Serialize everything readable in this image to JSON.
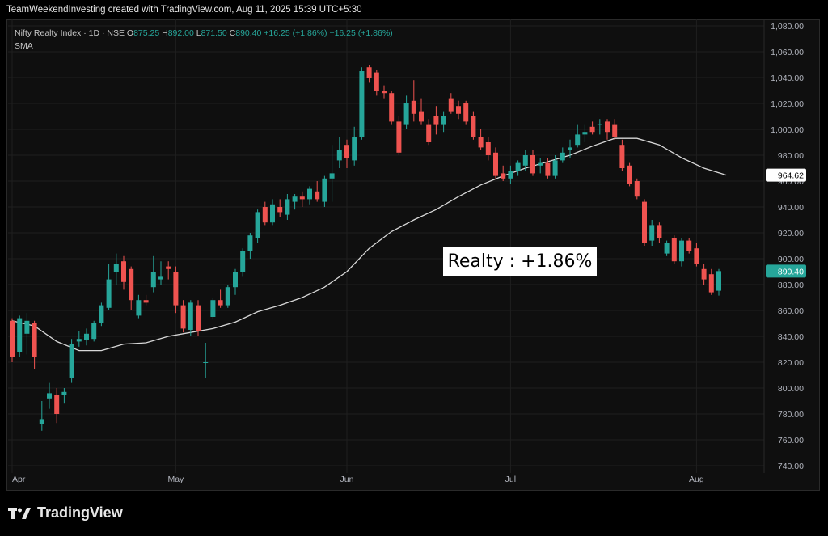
{
  "caption": "TeamWeekendInvesting created with TradingView.com, Aug 11, 2025 15:39 UTC+5:30",
  "legend": {
    "symbol": "Nifty Realty Index · 1D · NSE",
    "o_label": "O",
    "o_value": "875.25",
    "h_label": "H",
    "h_value": "892.00",
    "l_label": "L",
    "l_value": "871.50",
    "c_label": "C",
    "c_value": "890.40",
    "change": "+16.25 (+1.86%)",
    "change2": "+16.25 (+1.86%)",
    "indicator": "SMA"
  },
  "annotation": "Realty : +1.86%",
  "brand": "TradingView",
  "colors": {
    "up": "#26a69a",
    "down": "#ef5350",
    "sma": "#d8d8d8",
    "background": "#0f0f0f",
    "grid": "#1f1f1f"
  },
  "chart_data": {
    "type": "candlestick",
    "title": "Nifty Realty Index · 1D · NSE",
    "ylim": [
      740,
      1080
    ],
    "y_ticks": [
      "1,080.00",
      "1,060.00",
      "1,040.00",
      "1,020.00",
      "1,000.00",
      "980.00",
      "960.00",
      "940.00",
      "920.00",
      "900.00",
      "880.00",
      "860.00",
      "840.00",
      "820.00",
      "800.00",
      "780.00",
      "760.00",
      "740.00"
    ],
    "x_ticks": [
      {
        "label": "Apr",
        "index": 0
      },
      {
        "label": "May",
        "index": 22
      },
      {
        "label": "Jun",
        "index": 45
      },
      {
        "label": "Jul",
        "index": 67
      },
      {
        "label": "Aug",
        "index": 92
      }
    ],
    "price_badges": [
      {
        "label": "964.62",
        "value": 964.62,
        "kind": "sma"
      },
      {
        "label": "890.40",
        "value": 890.4,
        "kind": "last"
      }
    ],
    "candles": [
      {
        "o": 852,
        "h": 854,
        "l": 820,
        "c": 824
      },
      {
        "o": 828,
        "h": 856,
        "l": 824,
        "c": 854
      },
      {
        "o": 842,
        "h": 858,
        "l": 826,
        "c": 852
      },
      {
        "o": 850,
        "h": 852,
        "l": 815,
        "c": 824
      },
      {
        "o": 772,
        "h": 790,
        "l": 767,
        "c": 776
      },
      {
        "o": 792,
        "h": 804,
        "l": 784,
        "c": 796
      },
      {
        "o": 795,
        "h": 800,
        "l": 773,
        "c": 780
      },
      {
        "o": 795,
        "h": 800,
        "l": 788,
        "c": 797
      },
      {
        "o": 808,
        "h": 838,
        "l": 804,
        "c": 834
      },
      {
        "o": 836,
        "h": 844,
        "l": 832,
        "c": 838
      },
      {
        "o": 837,
        "h": 846,
        "l": 833,
        "c": 842
      },
      {
        "o": 838,
        "h": 852,
        "l": 836,
        "c": 850
      },
      {
        "o": 850,
        "h": 866,
        "l": 848,
        "c": 864
      },
      {
        "o": 862,
        "h": 896,
        "l": 860,
        "c": 884
      },
      {
        "o": 890,
        "h": 904,
        "l": 880,
        "c": 896
      },
      {
        "o": 898,
        "h": 902,
        "l": 876,
        "c": 882
      },
      {
        "o": 892,
        "h": 894,
        "l": 860,
        "c": 868
      },
      {
        "o": 856,
        "h": 872,
        "l": 854,
        "c": 868
      },
      {
        "o": 868,
        "h": 872,
        "l": 864,
        "c": 866
      },
      {
        "o": 878,
        "h": 902,
        "l": 874,
        "c": 890
      },
      {
        "o": 884,
        "h": 898,
        "l": 880,
        "c": 886
      },
      {
        "o": 894,
        "h": 898,
        "l": 884,
        "c": 892
      },
      {
        "o": 890,
        "h": 894,
        "l": 858,
        "c": 864
      },
      {
        "o": 864,
        "h": 868,
        "l": 843,
        "c": 846
      },
      {
        "o": 845,
        "h": 868,
        "l": 840,
        "c": 866
      },
      {
        "o": 864,
        "h": 868,
        "l": 840,
        "c": 844
      },
      {
        "o": 820,
        "h": 835,
        "l": 808,
        "c": 820
      },
      {
        "o": 855,
        "h": 870,
        "l": 853,
        "c": 868
      },
      {
        "o": 868,
        "h": 876,
        "l": 862,
        "c": 864
      },
      {
        "o": 864,
        "h": 880,
        "l": 862,
        "c": 878
      },
      {
        "o": 878,
        "h": 892,
        "l": 872,
        "c": 890
      },
      {
        "o": 890,
        "h": 908,
        "l": 886,
        "c": 906
      },
      {
        "o": 906,
        "h": 920,
        "l": 900,
        "c": 918
      },
      {
        "o": 916,
        "h": 938,
        "l": 912,
        "c": 936
      },
      {
        "o": 940,
        "h": 944,
        "l": 926,
        "c": 928
      },
      {
        "o": 928,
        "h": 946,
        "l": 926,
        "c": 942
      },
      {
        "o": 940,
        "h": 946,
        "l": 932,
        "c": 936
      },
      {
        "o": 934,
        "h": 950,
        "l": 930,
        "c": 946
      },
      {
        "o": 944,
        "h": 950,
        "l": 938,
        "c": 948
      },
      {
        "o": 948,
        "h": 952,
        "l": 940,
        "c": 946
      },
      {
        "o": 946,
        "h": 956,
        "l": 942,
        "c": 954
      },
      {
        "o": 952,
        "h": 960,
        "l": 944,
        "c": 946
      },
      {
        "o": 944,
        "h": 964,
        "l": 940,
        "c": 962
      },
      {
        "o": 962,
        "h": 988,
        "l": 944,
        "c": 966
      },
      {
        "o": 976,
        "h": 994,
        "l": 970,
        "c": 984
      },
      {
        "o": 988,
        "h": 992,
        "l": 970,
        "c": 978
      },
      {
        "o": 976,
        "h": 1002,
        "l": 972,
        "c": 994
      },
      {
        "o": 994,
        "h": 1048,
        "l": 992,
        "c": 1045
      },
      {
        "o": 1048,
        "h": 1050,
        "l": 1036,
        "c": 1040
      },
      {
        "o": 1044,
        "h": 1046,
        "l": 1026,
        "c": 1030
      },
      {
        "o": 1030,
        "h": 1034,
        "l": 1024,
        "c": 1028
      },
      {
        "o": 1028,
        "h": 1030,
        "l": 1004,
        "c": 1006
      },
      {
        "o": 1006,
        "h": 1010,
        "l": 980,
        "c": 982
      },
      {
        "o": 1004,
        "h": 1026,
        "l": 1000,
        "c": 1020
      },
      {
        "o": 1022,
        "h": 1038,
        "l": 1006,
        "c": 1012
      },
      {
        "o": 1014,
        "h": 1024,
        "l": 1004,
        "c": 1006
      },
      {
        "o": 1004,
        "h": 1008,
        "l": 988,
        "c": 990
      },
      {
        "o": 1010,
        "h": 1018,
        "l": 996,
        "c": 1004
      },
      {
        "o": 1004,
        "h": 1014,
        "l": 998,
        "c": 1010
      },
      {
        "o": 1024,
        "h": 1028,
        "l": 1012,
        "c": 1014
      },
      {
        "o": 1018,
        "h": 1022,
        "l": 1008,
        "c": 1012
      },
      {
        "o": 1020,
        "h": 1022,
        "l": 1004,
        "c": 1006
      },
      {
        "o": 1010,
        "h": 1014,
        "l": 992,
        "c": 994
      },
      {
        "o": 994,
        "h": 1000,
        "l": 984,
        "c": 986
      },
      {
        "o": 990,
        "h": 994,
        "l": 976,
        "c": 980
      },
      {
        "o": 982,
        "h": 986,
        "l": 962,
        "c": 964
      },
      {
        "o": 966,
        "h": 972,
        "l": 960,
        "c": 962
      },
      {
        "o": 962,
        "h": 972,
        "l": 958,
        "c": 968
      },
      {
        "o": 968,
        "h": 976,
        "l": 964,
        "c": 974
      },
      {
        "o": 972,
        "h": 984,
        "l": 968,
        "c": 980
      },
      {
        "o": 980,
        "h": 984,
        "l": 964,
        "c": 966
      },
      {
        "o": 972,
        "h": 978,
        "l": 966,
        "c": 974
      },
      {
        "o": 974,
        "h": 978,
        "l": 962,
        "c": 964
      },
      {
        "o": 964,
        "h": 980,
        "l": 962,
        "c": 976
      },
      {
        "o": 976,
        "h": 986,
        "l": 974,
        "c": 982
      },
      {
        "o": 984,
        "h": 992,
        "l": 978,
        "c": 986
      },
      {
        "o": 988,
        "h": 1004,
        "l": 986,
        "c": 996
      },
      {
        "o": 996,
        "h": 1004,
        "l": 990,
        "c": 998
      },
      {
        "o": 1002,
        "h": 1006,
        "l": 996,
        "c": 998
      },
      {
        "o": 1004,
        "h": 1008,
        "l": 996,
        "c": 1004
      },
      {
        "o": 1006,
        "h": 1008,
        "l": 992,
        "c": 998
      },
      {
        "o": 1004,
        "h": 1008,
        "l": 992,
        "c": 994
      },
      {
        "o": 988,
        "h": 992,
        "l": 968,
        "c": 970
      },
      {
        "o": 972,
        "h": 974,
        "l": 956,
        "c": 958
      },
      {
        "o": 960,
        "h": 962,
        "l": 946,
        "c": 948
      },
      {
        "o": 944,
        "h": 946,
        "l": 910,
        "c": 912
      },
      {
        "o": 914,
        "h": 930,
        "l": 910,
        "c": 926
      },
      {
        "o": 926,
        "h": 928,
        "l": 912,
        "c": 916
      },
      {
        "o": 904,
        "h": 914,
        "l": 902,
        "c": 912
      },
      {
        "o": 916,
        "h": 918,
        "l": 896,
        "c": 898
      },
      {
        "o": 898,
        "h": 916,
        "l": 894,
        "c": 914
      },
      {
        "o": 914,
        "h": 916,
        "l": 904,
        "c": 906
      },
      {
        "o": 908,
        "h": 912,
        "l": 894,
        "c": 896
      },
      {
        "o": 892,
        "h": 896,
        "l": 880,
        "c": 884
      },
      {
        "o": 888,
        "h": 892,
        "l": 872,
        "c": 874
      },
      {
        "o": 875.25,
        "h": 892,
        "l": 871.5,
        "c": 890.4
      }
    ],
    "sma": [
      {
        "i": 0,
        "v": 852
      },
      {
        "i": 3,
        "v": 848
      },
      {
        "i": 6,
        "v": 836
      },
      {
        "i": 9,
        "v": 829
      },
      {
        "i": 12,
        "v": 829
      },
      {
        "i": 15,
        "v": 834
      },
      {
        "i": 18,
        "v": 835
      },
      {
        "i": 21,
        "v": 840
      },
      {
        "i": 24,
        "v": 843
      },
      {
        "i": 27,
        "v": 846
      },
      {
        "i": 30,
        "v": 851
      },
      {
        "i": 33,
        "v": 859
      },
      {
        "i": 36,
        "v": 864
      },
      {
        "i": 39,
        "v": 870
      },
      {
        "i": 42,
        "v": 878
      },
      {
        "i": 45,
        "v": 890
      },
      {
        "i": 48,
        "v": 908
      },
      {
        "i": 51,
        "v": 921
      },
      {
        "i": 54,
        "v": 930
      },
      {
        "i": 57,
        "v": 938
      },
      {
        "i": 60,
        "v": 948
      },
      {
        "i": 63,
        "v": 957
      },
      {
        "i": 66,
        "v": 964
      },
      {
        "i": 69,
        "v": 970
      },
      {
        "i": 72,
        "v": 975
      },
      {
        "i": 75,
        "v": 980
      },
      {
        "i": 78,
        "v": 987
      },
      {
        "i": 81,
        "v": 993
      },
      {
        "i": 84,
        "v": 993
      },
      {
        "i": 87,
        "v": 988
      },
      {
        "i": 90,
        "v": 978
      },
      {
        "i": 93,
        "v": 970
      },
      {
        "i": 96,
        "v": 964.62
      }
    ]
  }
}
